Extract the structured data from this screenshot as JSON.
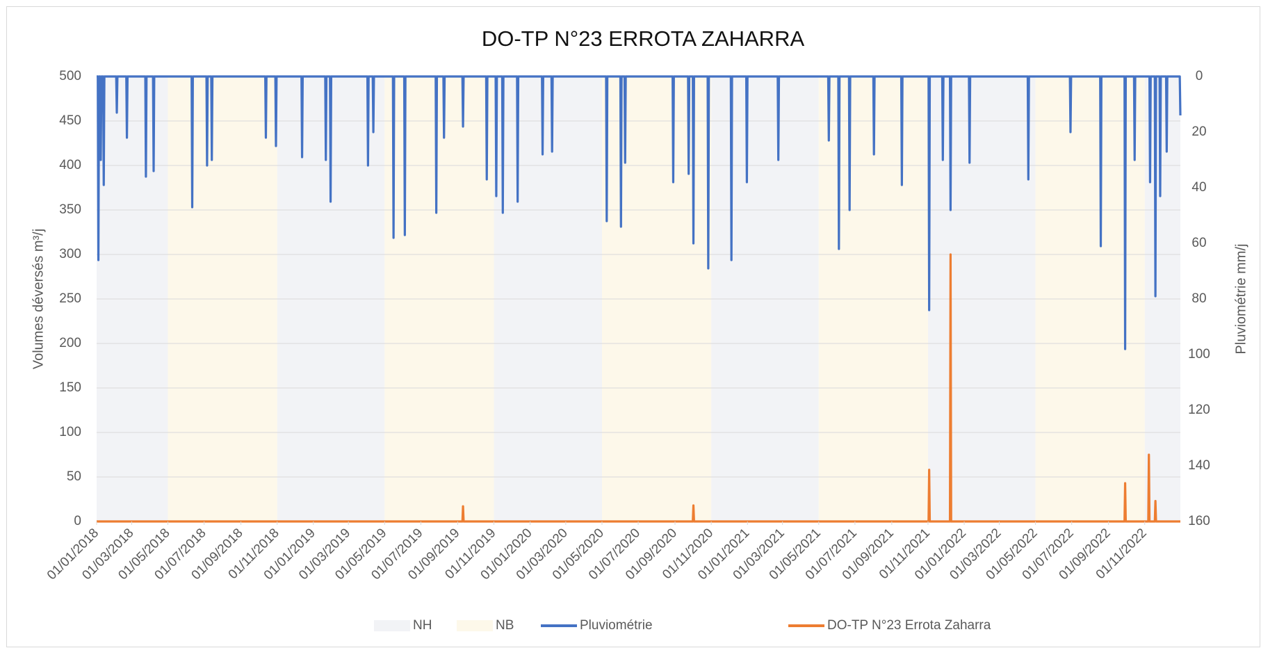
{
  "chart_data": {
    "type": "line",
    "title": "DO-TP N°23 ERROTA ZAHARRA",
    "y_label": "Volumes déversés m³/j",
    "y2_label": "Pluviométrie mm/j",
    "xlim": [
      "01/01/2018",
      "31/12/2022"
    ],
    "xticks": [
      "01/01/2018",
      "01/03/2018",
      "01/05/2018",
      "01/07/2018",
      "01/09/2018",
      "01/11/2018",
      "01/01/2019",
      "01/03/2019",
      "01/05/2019",
      "01/07/2019",
      "01/09/2019",
      "01/11/2019",
      "01/01/2020",
      "01/03/2020",
      "01/05/2020",
      "01/07/2020",
      "01/09/2020",
      "01/11/2020",
      "01/01/2021",
      "01/03/2021",
      "01/05/2021",
      "01/07/2021",
      "01/09/2021",
      "01/11/2021",
      "01/01/2022",
      "01/03/2022",
      "01/05/2022",
      "01/07/2022",
      "01/09/2022",
      "01/11/2022"
    ],
    "ylim": [
      0,
      500
    ],
    "yticks": [
      0,
      50,
      100,
      150,
      200,
      250,
      300,
      350,
      400,
      450,
      500
    ],
    "y2lim": [
      0,
      160
    ],
    "y2ticks": [
      0,
      20,
      40,
      60,
      80,
      100,
      120,
      140,
      160
    ],
    "y2_inverted": true,
    "grid": true,
    "legend": "bottom",
    "series": [
      {
        "name": "NH",
        "type": "band",
        "color": "#f2f3f6",
        "periods": [
          [
            "01/01/2018",
            "01/05/2018"
          ],
          [
            "01/11/2018",
            "01/05/2019"
          ],
          [
            "01/11/2019",
            "01/05/2020"
          ],
          [
            "01/11/2020",
            "01/05/2021"
          ],
          [
            "01/11/2021",
            "01/05/2022"
          ],
          [
            "01/11/2022",
            "31/12/2022"
          ]
        ]
      },
      {
        "name": "NB",
        "type": "band",
        "color": "#fdf8ea",
        "periods": [
          [
            "01/05/2018",
            "01/11/2018"
          ],
          [
            "01/05/2019",
            "01/11/2019"
          ],
          [
            "01/05/2020",
            "01/11/2020"
          ],
          [
            "01/05/2021",
            "01/11/2021"
          ],
          [
            "01/05/2022",
            "01/11/2022"
          ]
        ]
      },
      {
        "name": "Pluviométrie",
        "type": "line",
        "axis": "y2",
        "color": "#4472c4",
        "x": [
          "01/01/2018",
          "03/01/2018",
          "04/01/2018",
          "05/01/2018",
          "07/01/2018",
          "08/01/2018",
          "09/01/2018",
          "12/01/2018",
          "13/01/2018",
          "14/01/2018",
          "03/02/2018",
          "04/02/2018",
          "05/02/2018",
          "20/02/2018",
          "21/02/2018",
          "22/02/2018",
          "24/03/2018",
          "25/03/2018",
          "26/03/2018",
          "06/04/2018",
          "07/04/2018",
          "08/04/2018",
          "10/06/2018",
          "11/06/2018",
          "12/06/2018",
          "05/07/2018",
          "06/07/2018",
          "07/07/2018",
          "13/07/2018",
          "14/07/2018",
          "15/07/2018",
          "12/10/2018",
          "13/10/2018",
          "14/10/2018",
          "29/10/2018",
          "30/10/2018",
          "31/10/2018",
          "12/12/2018",
          "13/12/2018",
          "14/12/2018",
          "21/01/2019",
          "22/01/2019",
          "23/01/2019",
          "29/01/2019",
          "30/01/2019",
          "31/01/2019",
          "02/04/2019",
          "03/04/2019",
          "04/04/2019",
          "11/04/2019",
          "12/04/2019",
          "13/04/2019",
          "15/05/2019",
          "16/05/2019",
          "17/05/2019",
          "03/06/2019",
          "04/06/2019",
          "05/06/2019",
          "26/07/2019",
          "27/07/2019",
          "28/07/2019",
          "08/08/2019",
          "09/08/2019",
          "10/08/2019",
          "09/09/2019",
          "10/09/2019",
          "11/09/2019",
          "19/10/2019",
          "20/10/2019",
          "21/10/2019",
          "04/11/2019",
          "05/11/2019",
          "06/11/2019",
          "15/11/2019",
          "16/11/2019",
          "17/11/2019",
          "10/12/2019",
          "11/12/2019",
          "12/12/2019",
          "21/01/2020",
          "22/01/2020",
          "23/01/2020",
          "06/02/2020",
          "07/02/2020",
          "08/02/2020",
          "08/05/2020",
          "09/05/2020",
          "10/05/2020",
          "01/06/2020",
          "02/06/2020",
          "03/06/2020",
          "08/06/2020",
          "09/06/2020",
          "10/06/2020",
          "28/08/2020",
          "29/08/2020",
          "30/08/2020",
          "23/09/2020",
          "24/09/2020",
          "25/09/2020",
          "01/10/2020",
          "02/10/2020",
          "03/10/2020",
          "26/10/2020",
          "27/10/2020",
          "28/10/2020",
          "04/12/2020",
          "05/12/2020",
          "06/12/2020",
          "30/12/2020",
          "31/12/2020",
          "01/01/2021",
          "21/02/2021",
          "22/02/2021",
          "23/02/2021",
          "17/05/2021",
          "18/05/2021",
          "19/05/2021",
          "03/06/2021",
          "04/06/2021",
          "05/06/2021",
          "21/06/2021",
          "22/06/2021",
          "23/06/2021",
          "01/08/2021",
          "02/08/2021",
          "03/08/2021",
          "17/09/2021",
          "18/09/2021",
          "19/09/2021",
          "02/11/2021",
          "03/11/2021",
          "04/11/2021",
          "25/11/2021",
          "26/11/2021",
          "27/11/2021",
          "08/12/2021",
          "09/12/2021",
          "10/12/2021",
          "09/01/2022",
          "10/01/2022",
          "11/01/2022",
          "18/04/2022",
          "19/04/2022",
          "20/04/2022",
          "28/06/2022",
          "29/06/2022",
          "30/06/2022",
          "18/08/2022",
          "19/08/2022",
          "20/08/2022",
          "28/09/2022",
          "29/09/2022",
          "30/09/2022",
          "14/10/2022",
          "15/10/2022",
          "16/10/2022",
          "09/11/2022",
          "10/11/2022",
          "11/11/2022",
          "18/11/2022",
          "19/11/2022",
          "20/11/2022",
          "26/11/2022",
          "27/11/2022",
          "28/11/2022",
          "07/12/2022",
          "08/12/2022",
          "09/12/2022",
          "30/12/2022",
          "31/12/2022"
        ],
        "values": [
          0,
          0,
          66,
          0,
          0,
          30,
          0,
          0,
          39,
          0,
          0,
          13,
          0,
          0,
          22,
          0,
          0,
          36,
          0,
          0,
          34,
          0,
          0,
          47,
          0,
          0,
          32,
          0,
          0,
          30,
          0,
          0,
          22,
          0,
          0,
          25,
          0,
          0,
          29,
          0,
          0,
          30,
          0,
          0,
          45,
          0,
          0,
          32,
          0,
          0,
          20,
          0,
          0,
          58,
          0,
          0,
          57,
          0,
          0,
          49,
          0,
          0,
          22,
          0,
          0,
          18,
          0,
          0,
          37,
          0,
          0,
          43,
          0,
          0,
          49,
          0,
          0,
          45,
          0,
          0,
          28,
          0,
          0,
          27,
          0,
          0,
          52,
          0,
          0,
          54,
          0,
          0,
          31,
          0,
          0,
          38,
          0,
          0,
          35,
          0,
          0,
          60,
          0,
          0,
          69,
          0,
          0,
          66,
          0,
          0,
          38,
          0,
          0,
          30,
          0,
          0,
          23,
          0,
          0,
          62,
          0,
          0,
          48,
          0,
          0,
          28,
          0,
          0,
          39,
          0,
          0,
          84,
          0,
          0,
          30,
          0,
          0,
          48,
          0,
          0,
          31,
          0,
          0,
          37,
          0,
          0,
          20,
          0,
          0,
          61,
          0,
          0,
          98,
          0,
          0,
          30,
          0,
          0,
          38,
          0,
          0,
          79,
          0,
          0,
          43,
          0,
          0,
          27,
          0,
          0,
          14
        ]
      },
      {
        "name": "DO-TP N°23 Errota Zaharra",
        "type": "line",
        "axis": "y",
        "color": "#ed7d31",
        "x": [
          "01/01/2018",
          "09/09/2019",
          "10/09/2019",
          "11/09/2019",
          "01/10/2020",
          "02/10/2020",
          "03/10/2020",
          "02/11/2021",
          "03/11/2021",
          "04/11/2021",
          "08/12/2021",
          "09/12/2021",
          "10/12/2021",
          "28/09/2022",
          "29/09/2022",
          "30/09/2022",
          "07/11/2022",
          "08/11/2022",
          "09/11/2022",
          "18/11/2022",
          "19/11/2022",
          "20/11/2022",
          "31/12/2022"
        ],
        "values": [
          0,
          0,
          17,
          0,
          0,
          18,
          0,
          0,
          58,
          0,
          0,
          300,
          0,
          0,
          43,
          0,
          0,
          75,
          0,
          0,
          23,
          0,
          0
        ]
      }
    ]
  }
}
